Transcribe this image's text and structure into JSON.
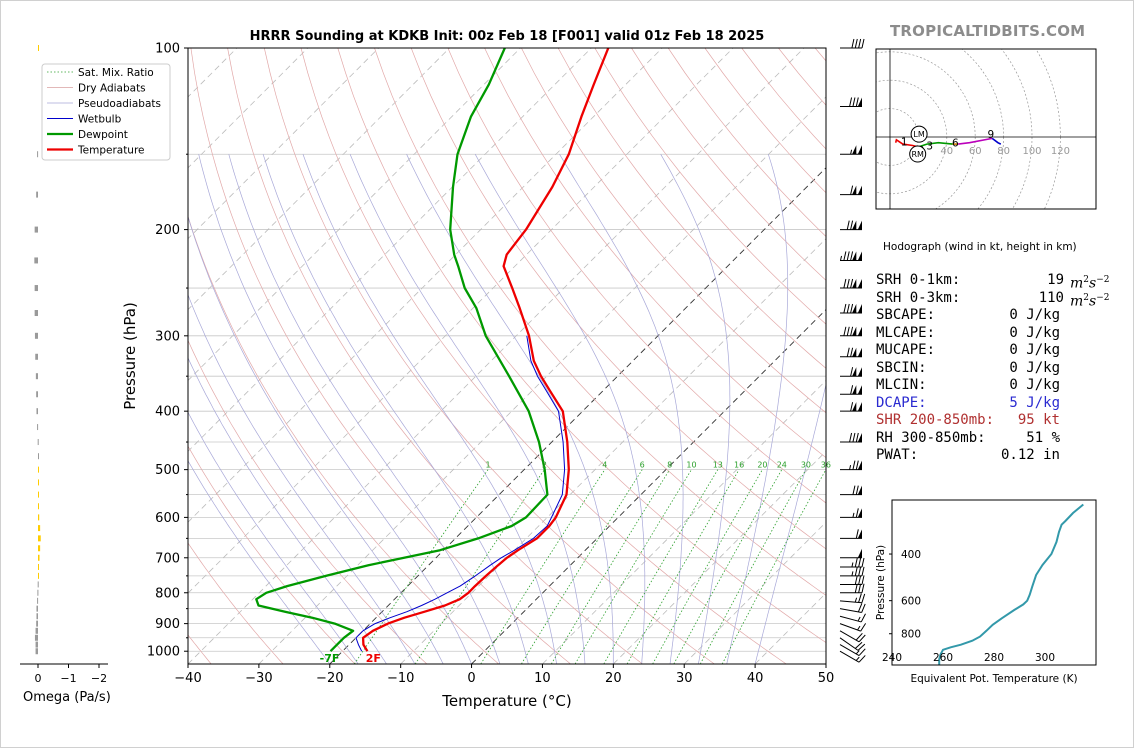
{
  "brand": "TROPICALTIDBITS.COM",
  "hodograph_caption": "Hodograph (wind in kt, height in km)",
  "stats": [
    {
      "key": "SRH 0-1km:",
      "value": "19",
      "unit_base": "m",
      "unit_sup1": "2",
      "unit_mid": "s",
      "unit_sup2": "−2",
      "color": "#000000"
    },
    {
      "key": "SRH 0-3km:",
      "value": "110",
      "unit_base": "m",
      "unit_sup1": "2",
      "unit_mid": "s",
      "unit_sup2": "−2",
      "color": "#000000"
    },
    {
      "key": "SBCAPE:",
      "value": "0 J/kg",
      "color": "#000000"
    },
    {
      "key": "MLCAPE:",
      "value": "0 J/kg",
      "color": "#000000"
    },
    {
      "key": "MUCAPE:",
      "value": "0 J/kg",
      "color": "#000000"
    },
    {
      "key": "SBCIN:",
      "value": "0 J/kg",
      "color": "#000000"
    },
    {
      "key": "MLCIN:",
      "value": "0 J/kg",
      "color": "#000000"
    },
    {
      "key": "DCAPE:",
      "value": "5 J/kg",
      "color": "#2a2ad0"
    },
    {
      "key": "SHR 200-850mb:",
      "value": "95 kt",
      "color": "#b03030"
    },
    {
      "key": "RH 300-850mb:",
      "value": "51 %",
      "color": "#000000"
    },
    {
      "key": "PWAT:",
      "value": "0.12 in",
      "color": "#000000"
    }
  ],
  "chart_data": [
    {
      "id": "skewt",
      "type": "line",
      "title": "HRRR Sounding at KDKB Init: 00z Feb 18 [F001] valid 01z Feb 18 2025",
      "xlabel": "Temperature (°C)",
      "ylabel": "Pressure (hPa)",
      "y_scale": "log",
      "y_reversed": true,
      "xlim": [
        -40,
        50
      ],
      "ylim": [
        1050,
        100
      ],
      "x_ticks": [
        -40,
        -30,
        -20,
        -10,
        0,
        10,
        20,
        30,
        40,
        50
      ],
      "x_tick_labels": [
        "−40",
        "−30",
        "−20",
        "−10",
        "0",
        "10",
        "20",
        "30",
        "40",
        "50"
      ],
      "y_ticks": [
        1000,
        900,
        800,
        700,
        600,
        500,
        400,
        300,
        200,
        100
      ],
      "y_tick_labels": [
        "1000",
        "900",
        "800",
        "700",
        "600",
        "500",
        "400",
        "300",
        "200",
        "100"
      ],
      "skew_deg": 45,
      "legend": {
        "placement": "upper-left",
        "entries": [
          {
            "label": "Sat. Mix. Ratio",
            "color": "#2ca02c",
            "style": "dotted"
          },
          {
            "label": "Dry Adiabats",
            "color": "#d9a0a0",
            "style": "solid"
          },
          {
            "label": "Pseudoadiabats",
            "color": "#a8a8d8",
            "style": "solid"
          },
          {
            "label": "Wetbulb",
            "color": "#0000cc",
            "style": "solid"
          },
          {
            "label": "Dewpoint",
            "color": "#009900",
            "style": "solid"
          },
          {
            "label": "Temperature",
            "color": "#ee0000",
            "style": "solid"
          }
        ]
      },
      "mixing_ratio_labels": [
        "1",
        "2",
        "4",
        "6",
        "8",
        "10",
        "13",
        "16",
        "20",
        "24",
        "30",
        "36"
      ],
      "mixing_ratio_values": [
        1,
        2,
        4,
        6,
        8,
        10,
        13,
        16,
        20,
        24,
        30,
        36
      ],
      "surface_labels": {
        "dewpoint": "-7F",
        "temperature": "2F"
      },
      "series": [
        {
          "name": "Temperature",
          "color": "#ee0000",
          "p": [
            1000,
            975,
            950,
            925,
            900,
            880,
            860,
            840,
            820,
            800,
            780,
            750,
            720,
            700,
            680,
            650,
            620,
            600,
            550,
            500,
            450,
            400,
            370,
            350,
            330,
            300,
            270,
            250,
            230,
            220,
            200,
            170,
            150,
            130,
            115,
            100
          ],
          "t": [
            -16.5,
            -18.0,
            -19.0,
            -18.6,
            -17.5,
            -16.0,
            -14.0,
            -12.0,
            -10.8,
            -10.5,
            -10.5,
            -10.4,
            -10.2,
            -10.0,
            -9.5,
            -8.5,
            -8.5,
            -8.8,
            -10.5,
            -13.7,
            -17.8,
            -22.8,
            -27.5,
            -30.8,
            -34.0,
            -38.2,
            -43.4,
            -47.3,
            -51.6,
            -52.8,
            -53.6,
            -55.9,
            -58.2,
            -61.7,
            -64.5,
            -67.6
          ]
        },
        {
          "name": "Wetbulb",
          "color": "#0000cc",
          "p": [
            1000,
            975,
            950,
            925,
            900,
            880,
            860,
            840,
            820,
            800,
            780,
            750,
            720,
            700,
            680,
            650,
            620,
            600,
            550,
            500,
            450,
            400,
            370,
            350,
            330,
            300
          ],
          "t": [
            -17.3,
            -18.7,
            -20.0,
            -20.0,
            -19.3,
            -18.0,
            -16.5,
            -15.3,
            -14.3,
            -13.5,
            -12.6,
            -11.9,
            -11.3,
            -10.8,
            -10.0,
            -9.0,
            -8.8,
            -9.4,
            -11.1,
            -14.3,
            -18.4,
            -23.4,
            -28.0,
            -31.3,
            -34.4,
            -38.5
          ]
        },
        {
          "name": "Dewpoint",
          "color": "#009900",
          "p": [
            1000,
            975,
            950,
            925,
            900,
            880,
            860,
            840,
            820,
            800,
            780,
            750,
            720,
            700,
            680,
            650,
            620,
            600,
            550,
            500,
            450,
            400,
            350,
            300,
            270,
            250,
            230,
            220,
            200,
            170,
            150,
            130,
            115,
            100
          ],
          "t": [
            -21.7,
            -21.7,
            -21.7,
            -21.4,
            -25.0,
            -29.0,
            -33.7,
            -38.3,
            -39.5,
            -39.0,
            -37.0,
            -33.0,
            -28.5,
            -24.5,
            -20.5,
            -16.8,
            -13.8,
            -13.0,
            -13.2,
            -17.1,
            -21.8,
            -27.6,
            -35.3,
            -44.3,
            -49.5,
            -54.0,
            -58.0,
            -60.2,
            -64.3,
            -69.9,
            -73.9,
            -77.3,
            -79.3,
            -82.2
          ]
        }
      ]
    },
    {
      "id": "omega",
      "type": "bar",
      "xlabel": "Omega (Pa/s)",
      "x_ticks": [
        0,
        -1,
        -2
      ],
      "x_tick_labels": [
        "0",
        "−1",
        "−2"
      ],
      "x_reversed": true,
      "xlim": [
        0.3,
        -2.5
      ],
      "y_scale": "log",
      "ylim": [
        1050,
        100
      ],
      "series": [
        {
          "name": "Omega",
          "color": "#9a9a9a",
          "highlight_color": "#ffcc00",
          "p": [
            1000,
            975,
            950,
            925,
            900,
            875,
            850,
            825,
            800,
            775,
            750,
            725,
            700,
            675,
            650,
            625,
            600,
            575,
            550,
            525,
            500,
            475,
            450,
            425,
            400,
            375,
            350,
            325,
            300,
            275,
            250,
            225,
            200,
            175,
            150,
            100
          ],
          "omega": [
            0.08,
            0.08,
            0.1,
            0.08,
            0.06,
            0.05,
            0.05,
            0.03,
            0.02,
            0.01,
            -0.02,
            -0.02,
            -0.05,
            -0.07,
            -0.09,
            -0.07,
            -0.04,
            -0.02,
            -0.01,
            -0.005,
            -0.005,
            0.0,
            0.01,
            0.03,
            0.05,
            0.06,
            0.07,
            0.09,
            0.1,
            0.11,
            0.11,
            0.12,
            0.11,
            0.06,
            0.03,
            -0.02
          ]
        }
      ]
    },
    {
      "id": "hodograph",
      "type": "line",
      "xlim": [
        -8,
        72
      ],
      "ylim": [
        -40,
        40
      ],
      "grid": true,
      "ring_labels": [
        "20",
        "40",
        "60",
        "80",
        "100",
        "120"
      ],
      "ring_values": [
        20,
        40,
        60,
        80,
        100,
        120
      ],
      "markers": [
        {
          "label": "LM",
          "u": 20.5,
          "v": 2.0
        },
        {
          "label": "RM",
          "u": 19.5,
          "v": -12.0
        }
      ],
      "series": [
        {
          "name": "0-1 km",
          "color": "#ee0000",
          "u": [
            4,
            4.5,
            9,
            16,
            20
          ],
          "v": [
            -4,
            -2,
            -5,
            -6,
            -7
          ]
        },
        {
          "name": "1-3 km",
          "color": "#009900",
          "u": [
            20,
            26,
            34,
            44
          ],
          "v": [
            -7,
            -5,
            -4,
            -5
          ]
        },
        {
          "name": "3-6 km",
          "color": "#cc7700",
          "u": [
            44,
            48
          ],
          "v": [
            -5,
            -5
          ]
        },
        {
          "name": "6-9 km",
          "color": "#bb00bb",
          "u": [
            48,
            56,
            72
          ],
          "v": [
            -5,
            -4,
            -1
          ]
        },
        {
          "name": "9+ km",
          "color": "#0000cc",
          "u": [
            72,
            76,
            78
          ],
          "v": [
            -1,
            -4,
            -5
          ]
        }
      ],
      "height_labels": [
        {
          "label": "1",
          "u": 10,
          "v": -3
        },
        {
          "label": "2",
          "u": 22,
          "v": -9
        },
        {
          "label": "3",
          "u": 28,
          "v": -6
        },
        {
          "label": "6",
          "u": 46,
          "v": -4
        },
        {
          "label": "9",
          "u": 71,
          "v": 2
        }
      ]
    },
    {
      "id": "theta_e",
      "type": "line",
      "xlabel": "Equivalent Pot. Temperature (K)",
      "ylabel": "Pressure (hPa)",
      "xlim": [
        240,
        320
      ],
      "ylim": [
        1050,
        250
      ],
      "x_ticks": [
        240,
        260,
        280,
        300
      ],
      "x_tick_labels": [
        "240",
        "260",
        "280",
        "300"
      ],
      "y_ticks": [
        400,
        600,
        800
      ],
      "y_tick_labels": [
        "400",
        "600",
        "800"
      ],
      "series": [
        {
          "name": "Theta-E",
          "color": "#3399aa",
          "p": [
            1050,
            1000,
            960,
            920,
            900,
            880,
            850,
            820,
            780,
            740,
            700,
            650,
            620,
            600,
            570,
            530,
            480,
            440,
            400,
            360,
            330,
            310,
            300,
            280,
            260
          ],
          "theta_e": [
            258.5,
            258.5,
            259.0,
            260.0,
            263.0,
            267.0,
            271.5,
            274.5,
            277.0,
            279.5,
            283.0,
            288.0,
            291.5,
            293.0,
            294.0,
            295.0,
            296.5,
            299.0,
            302.5,
            304.5,
            305.5,
            306.5,
            308.0,
            311.0,
            315.0
          ]
        }
      ]
    }
  ],
  "wind_barbs": [
    {
      "p": 1000,
      "speed_kt": 15,
      "dir_deg": 300
    },
    {
      "p": 975,
      "speed_kt": 15,
      "dir_deg": 300
    },
    {
      "p": 950,
      "speed_kt": 20,
      "dir_deg": 305
    },
    {
      "p": 925,
      "speed_kt": 20,
      "dir_deg": 300
    },
    {
      "p": 900,
      "speed_kt": 15,
      "dir_deg": 290
    },
    {
      "p": 875,
      "speed_kt": 15,
      "dir_deg": 285
    },
    {
      "p": 850,
      "speed_kt": 20,
      "dir_deg": 280
    },
    {
      "p": 825,
      "speed_kt": 25,
      "dir_deg": 275
    },
    {
      "p": 800,
      "speed_kt": 30,
      "dir_deg": 270
    },
    {
      "p": 775,
      "speed_kt": 30,
      "dir_deg": 270
    },
    {
      "p": 750,
      "speed_kt": 35,
      "dir_deg": 270
    },
    {
      "p": 725,
      "speed_kt": 35,
      "dir_deg": 270
    },
    {
      "p": 700,
      "speed_kt": 50,
      "dir_deg": 270
    },
    {
      "p": 650,
      "speed_kt": 60,
      "dir_deg": 270
    },
    {
      "p": 600,
      "speed_kt": 65,
      "dir_deg": 270
    },
    {
      "p": 550,
      "speed_kt": 70,
      "dir_deg": 270
    },
    {
      "p": 500,
      "speed_kt": 75,
      "dir_deg": 270
    },
    {
      "p": 450,
      "speed_kt": 80,
      "dir_deg": 270
    },
    {
      "p": 400,
      "speed_kt": 110,
      "dir_deg": 270
    },
    {
      "p": 375,
      "speed_kt": 110,
      "dir_deg": 270
    },
    {
      "p": 350,
      "speed_kt": 110,
      "dir_deg": 270
    },
    {
      "p": 325,
      "speed_kt": 120,
      "dir_deg": 270
    },
    {
      "p": 300,
      "speed_kt": 130,
      "dir_deg": 270
    },
    {
      "p": 275,
      "speed_kt": 130,
      "dir_deg": 270
    },
    {
      "p": 250,
      "speed_kt": 130,
      "dir_deg": 270
    },
    {
      "p": 225,
      "speed_kt": 135,
      "dir_deg": 270
    },
    {
      "p": 200,
      "speed_kt": 120,
      "dir_deg": 270
    },
    {
      "p": 175,
      "speed_kt": 110,
      "dir_deg": 270
    },
    {
      "p": 150,
      "speed_kt": 105,
      "dir_deg": 270
    },
    {
      "p": 125,
      "speed_kt": 80,
      "dir_deg": 270
    },
    {
      "p": 100,
      "speed_kt": 40,
      "dir_deg": 270
    }
  ]
}
